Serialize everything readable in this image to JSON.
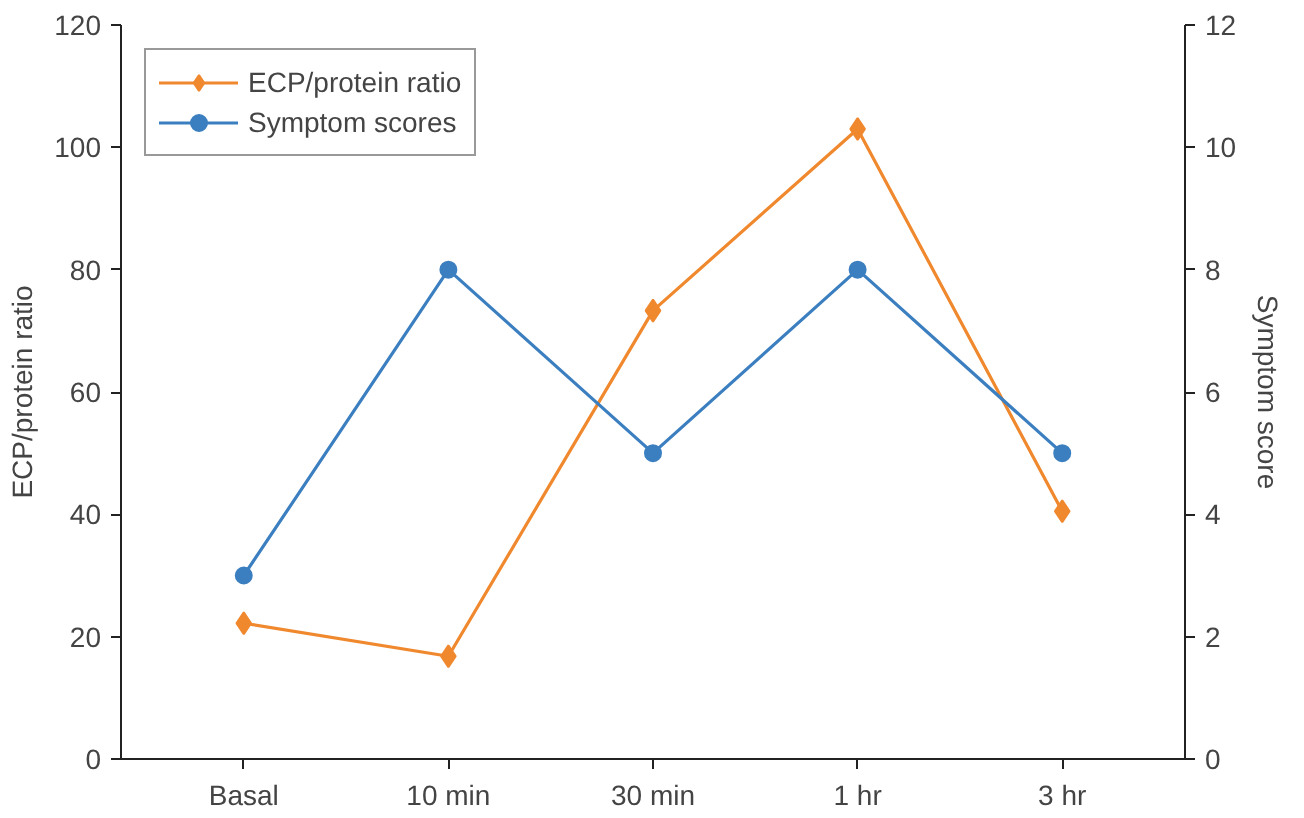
{
  "chart_data": {
    "type": "line",
    "ylabel": "ECP/protein ratio",
    "y2label": "Symptom score",
    "categories": [
      "Basal",
      "10 min",
      "30 min",
      "1 hr",
      "3 hr"
    ],
    "series": [
      {
        "name": "ECP/protein ratio",
        "color": "#f0882e",
        "marker": "diamond",
        "values": [
          22.2,
          16.8,
          73.3,
          103,
          40.5
        ]
      },
      {
        "name": "Symptom scores",
        "color": "#3b7fc0",
        "marker": "circle",
        "axis": "y2",
        "values": [
          3,
          8,
          5,
          8,
          5
        ]
      }
    ],
    "ylim": [
      0,
      120
    ],
    "yticks": [
      0,
      20,
      40,
      60,
      80,
      100,
      120
    ],
    "y2lim": [
      0,
      12
    ],
    "y2ticks": [
      0,
      2,
      4,
      6,
      8,
      10,
      12
    ],
    "grid": false,
    "legend": "top left"
  }
}
